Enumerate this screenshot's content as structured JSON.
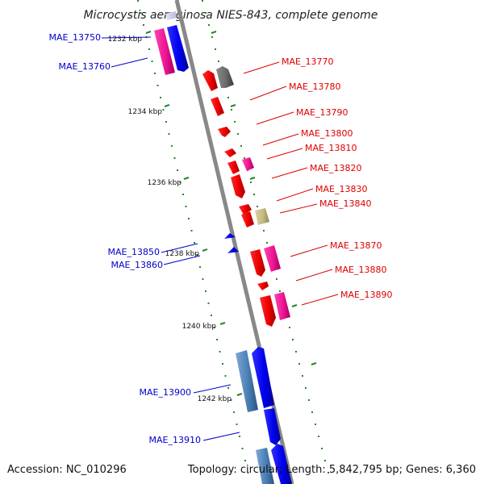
{
  "title": "Microcystis aeruginosa NIES-843, complete genome",
  "accession": "Accession: NC_010296",
  "topology": "Topology: circular; Length: 5,842,795 bp; Genes: 6,360",
  "colors": {
    "forward_label": "#0000cc",
    "reverse_label": "#dd0000",
    "backbone": "#888888",
    "tick": "#228822"
  },
  "ticks": [
    "1232 kbp",
    "1234 kbp",
    "1236 kbp",
    "1238 kbp",
    "1240 kbp",
    "1242 kbp"
  ],
  "left_labels": [
    "MAE_13750",
    "MAE_13760",
    "MAE_13850",
    "MAE_13860",
    "MAE_13900",
    "MAE_13910"
  ],
  "right_labels": [
    "MAE_13770",
    "MAE_13780",
    "MAE_13790",
    "MAE_13800",
    "MAE_13810",
    "MAE_13820",
    "MAE_13830",
    "MAE_13840",
    "MAE_13870",
    "MAE_13880",
    "MAE_13890"
  ]
}
